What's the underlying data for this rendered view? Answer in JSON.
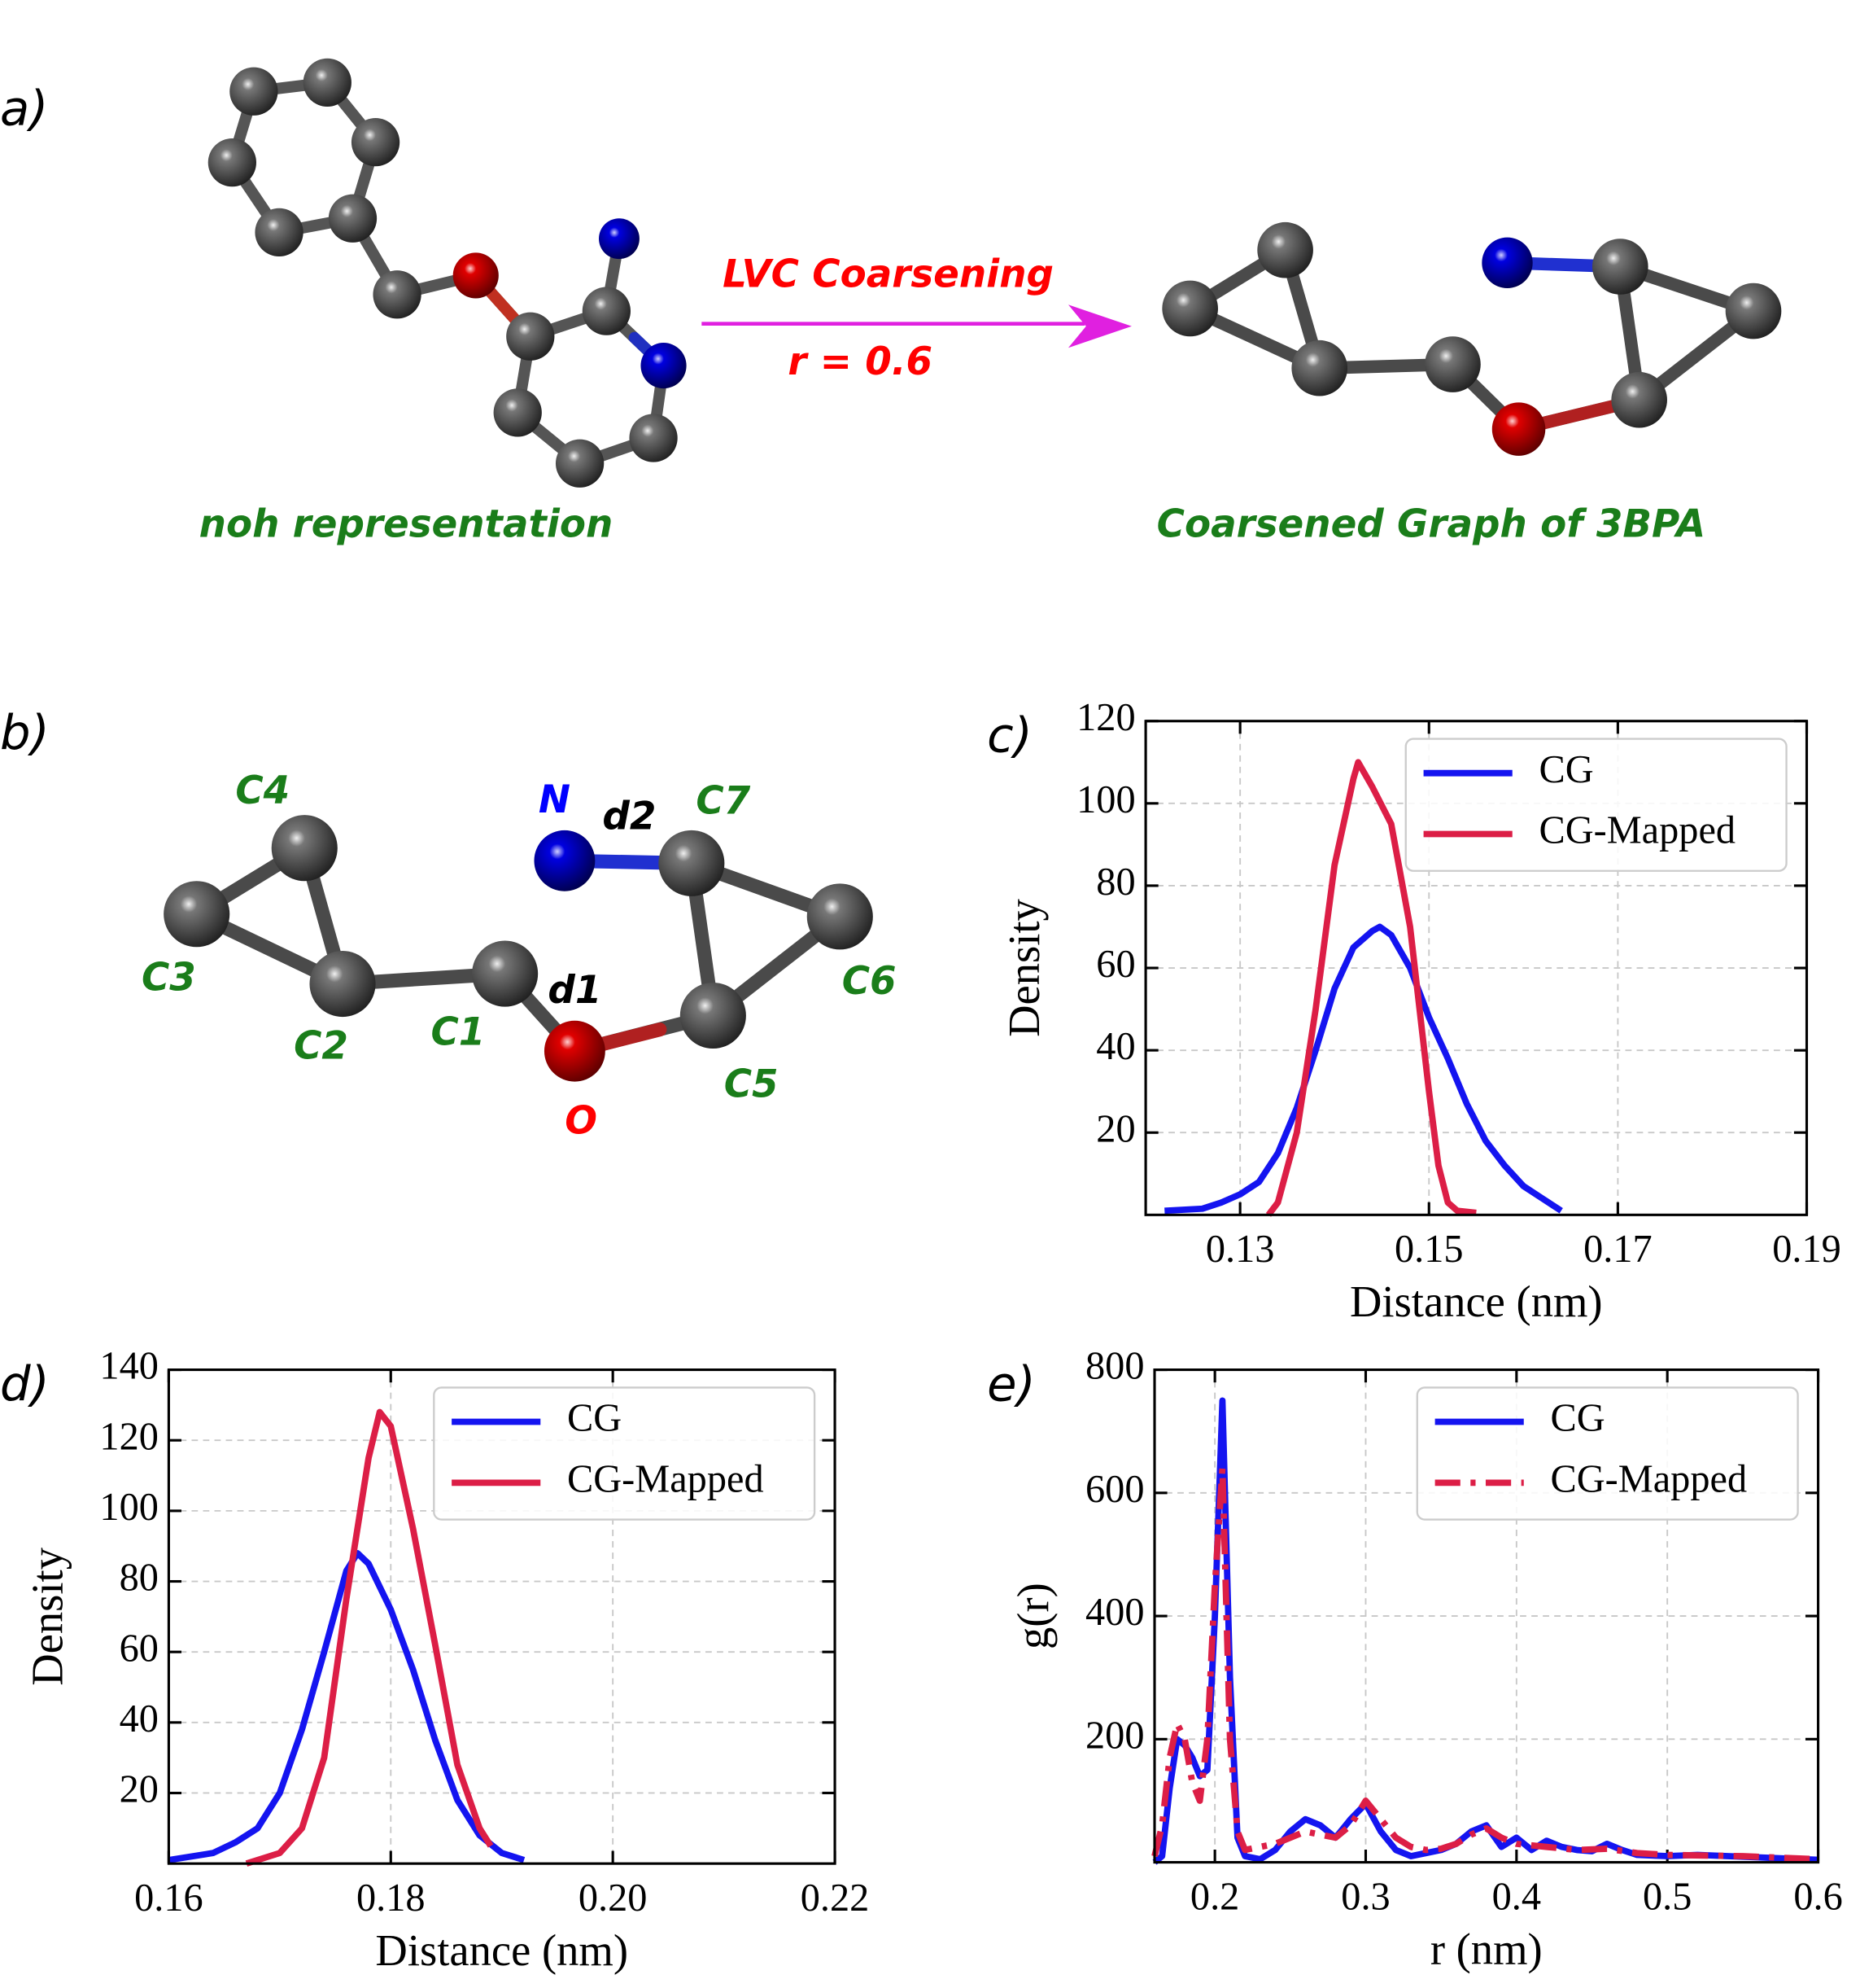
{
  "panel_a": {
    "label": "a)",
    "left_caption": "noh representation",
    "arrow_label": "LVC Coarsening",
    "arrow_sublabel": "r = 0.6",
    "right_caption": "Coarsened Graph of 3BPA"
  },
  "panel_b": {
    "label": "b)",
    "atoms": [
      "C1",
      "C2",
      "C3",
      "C4",
      "C5",
      "C6",
      "C7",
      "N",
      "O"
    ],
    "distances": [
      "d1",
      "d2"
    ]
  },
  "chart_data": [
    {
      "type": "line",
      "panel_label": "c)",
      "x_label": "Distance (nm)",
      "y_label": "Density",
      "xlim": [
        0.12,
        0.19
      ],
      "xticks": [
        0.13,
        0.15,
        0.17,
        0.19
      ],
      "ylim": [
        0,
        120
      ],
      "yticks": [
        20,
        40,
        60,
        80,
        100,
        120
      ],
      "grid": true,
      "legend": "upper right",
      "series": [
        {
          "name": "CG",
          "color": "#1414f0",
          "line_style": "solid",
          "x": [
            0.122,
            0.126,
            0.128,
            0.13,
            0.132,
            0.134,
            0.136,
            0.138,
            0.14,
            0.142,
            0.144,
            0.1448,
            0.146,
            0.148,
            0.15,
            0.152,
            0.154,
            0.156,
            0.158,
            0.16,
            0.162,
            0.164
          ],
          "values": [
            1,
            1.5,
            3,
            5,
            8,
            15,
            26,
            40,
            55,
            65,
            69,
            70,
            68,
            60,
            48,
            38,
            27,
            18,
            12,
            7,
            4,
            1
          ]
        },
        {
          "name": "CG-Mapped",
          "color": "#dc1e46",
          "line_style": "solid",
          "x": [
            0.133,
            0.134,
            0.136,
            0.138,
            0.14,
            0.142,
            0.1425,
            0.144,
            0.146,
            0.148,
            0.15,
            0.151,
            0.152,
            0.153,
            0.155
          ],
          "values": [
            0,
            3,
            20,
            50,
            85,
            106,
            110,
            104,
            95,
            70,
            30,
            12,
            3,
            1,
            0.5
          ]
        }
      ]
    },
    {
      "type": "line",
      "panel_label": "d)",
      "x_label": "Distance (nm)",
      "y_label": "Density",
      "xlim": [
        0.16,
        0.22
      ],
      "xticks": [
        0.16,
        0.18,
        {
          "value": 0.2,
          "label": "0.20"
        },
        0.22
      ],
      "ylim": [
        0,
        140
      ],
      "yticks": [
        20,
        40,
        60,
        80,
        100,
        120,
        140
      ],
      "grid": true,
      "legend": "upper right",
      "series": [
        {
          "name": "CG",
          "color": "#1414f0",
          "line_style": "solid",
          "x": [
            0.16,
            0.164,
            0.166,
            0.168,
            0.17,
            0.172,
            0.174,
            0.176,
            0.177,
            0.178,
            0.18,
            0.182,
            0.184,
            0.186,
            0.188,
            0.19,
            0.192
          ],
          "values": [
            1,
            3,
            6,
            10,
            20,
            38,
            60,
            83,
            88,
            85,
            72,
            55,
            35,
            18,
            8,
            3,
            1
          ]
        },
        {
          "name": "CG-Mapped",
          "color": "#dc1e46",
          "line_style": "solid",
          "x": [
            0.167,
            0.17,
            0.172,
            0.174,
            0.176,
            0.178,
            0.179,
            0.18,
            0.182,
            0.184,
            0.186,
            0.188,
            0.189
          ],
          "values": [
            0,
            3,
            10,
            30,
            75,
            115,
            128,
            124,
            95,
            62,
            28,
            10,
            5
          ]
        }
      ]
    },
    {
      "type": "line",
      "panel_label": "e)",
      "x_label": "r (nm)",
      "y_label": "g(r)",
      "xlim": [
        0.16,
        0.6
      ],
      "xticks": [
        0.2,
        0.3,
        0.4,
        0.5,
        0.6
      ],
      "ylim": [
        0,
        800
      ],
      "yticks": [
        200,
        400,
        600,
        800
      ],
      "grid": true,
      "legend": "upper right",
      "series": [
        {
          "name": "CG",
          "color": "#1414f0",
          "line_style": "solid",
          "x": [
            0.16,
            0.165,
            0.17,
            0.175,
            0.18,
            0.185,
            0.19,
            0.195,
            0.2,
            0.205,
            0.21,
            0.215,
            0.22,
            0.23,
            0.24,
            0.25,
            0.26,
            0.27,
            0.28,
            0.29,
            0.3,
            0.31,
            0.32,
            0.33,
            0.34,
            0.35,
            0.36,
            0.37,
            0.38,
            0.39,
            0.4,
            0.41,
            0.42,
            0.43,
            0.44,
            0.45,
            0.46,
            0.47,
            0.48,
            0.5,
            0.52,
            0.54,
            0.56,
            0.58,
            0.6
          ],
          "values": [
            0,
            10,
            120,
            200,
            190,
            170,
            140,
            150,
            400,
            750,
            300,
            40,
            10,
            5,
            20,
            50,
            70,
            60,
            40,
            70,
            95,
            50,
            20,
            10,
            15,
            20,
            30,
            50,
            60,
            25,
            40,
            20,
            35,
            25,
            20,
            18,
            30,
            20,
            12,
            10,
            12,
            10,
            8,
            6,
            4
          ]
        },
        {
          "name": "CG-Mapped",
          "color": "#dc1e46",
          "line_style": "dashdot",
          "x": [
            0.16,
            0.165,
            0.17,
            0.175,
            0.18,
            0.185,
            0.19,
            0.195,
            0.2,
            0.205,
            0.21,
            0.215,
            0.22,
            0.24,
            0.25,
            0.26,
            0.27,
            0.28,
            0.29,
            0.3,
            0.31,
            0.32,
            0.33,
            0.34,
            0.35,
            0.36,
            0.37,
            0.38,
            0.39,
            0.4,
            0.42,
            0.44,
            0.46,
            0.48,
            0.5,
            0.55,
            0.6
          ],
          "values": [
            10,
            60,
            170,
            225,
            200,
            130,
            100,
            200,
            450,
            640,
            200,
            50,
            20,
            30,
            40,
            50,
            45,
            40,
            60,
            100,
            70,
            40,
            25,
            20,
            22,
            30,
            45,
            55,
            40,
            30,
            25,
            20,
            22,
            15,
            12,
            10,
            5
          ]
        }
      ]
    }
  ]
}
